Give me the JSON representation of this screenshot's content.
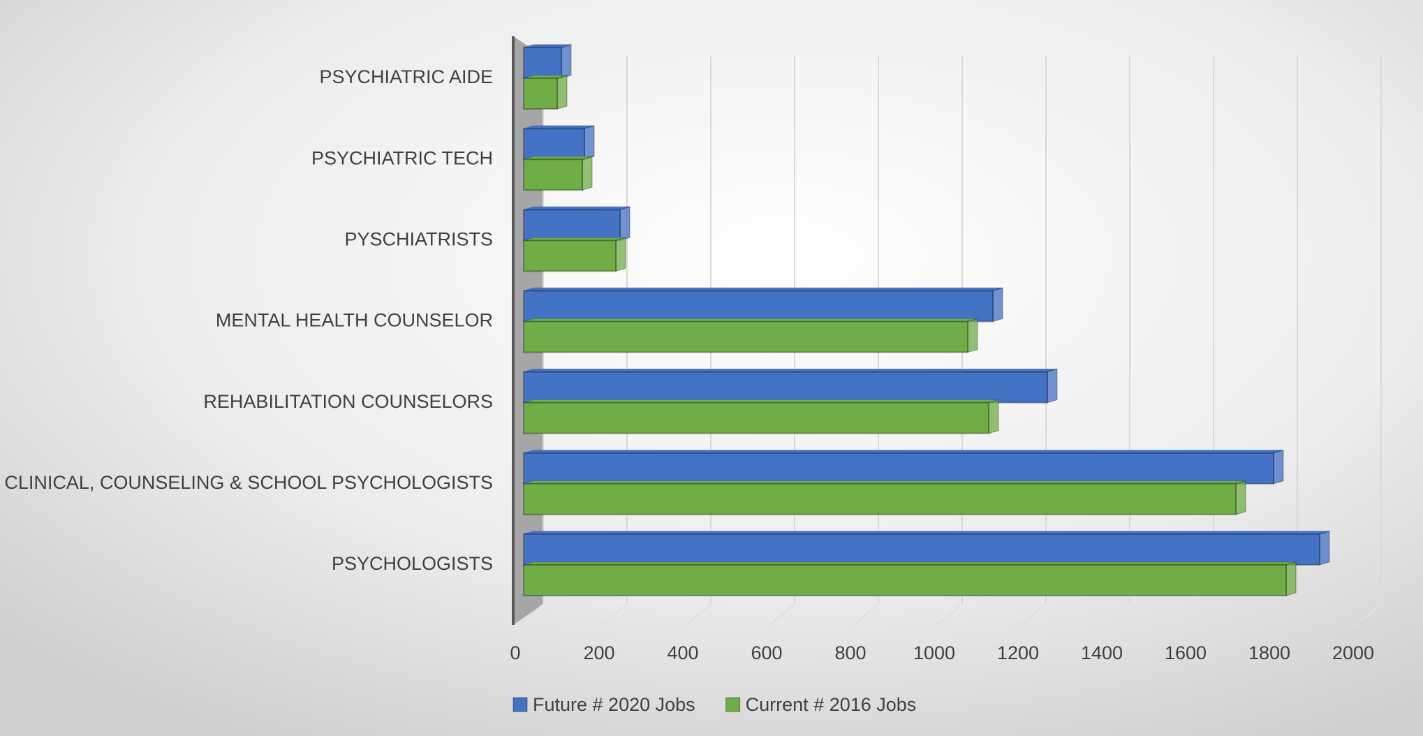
{
  "chart_data": {
    "type": "bar",
    "orientation": "horizontal",
    "categories": [
      "PSYCHIATRIC AIDE",
      "PSYCHIATRIC TECH",
      "PYSCHIATRISTS",
      "MENTAL HEALTH COUNSELOR",
      "REHABILITATION COUNSELORS",
      "CLINICAL, COUNSELING & SCHOOL PSYCHOLOGISTS",
      "PSYCHOLOGISTS"
    ],
    "series": [
      {
        "name": "Future # 2020 Jobs",
        "color": "#4472c4",
        "values": [
          90,
          145,
          230,
          1120,
          1250,
          1790,
          1900
        ]
      },
      {
        "name": "Current # 2016 Jobs",
        "color": "#70ad47",
        "values": [
          80,
          140,
          220,
          1060,
          1110,
          1700,
          1820
        ]
      }
    ],
    "xlim": [
      0,
      2000
    ],
    "xticks": [
      0,
      200,
      400,
      600,
      800,
      1000,
      1200,
      1400,
      1600,
      1800,
      2000
    ],
    "grid": true,
    "legend": "bottom"
  }
}
